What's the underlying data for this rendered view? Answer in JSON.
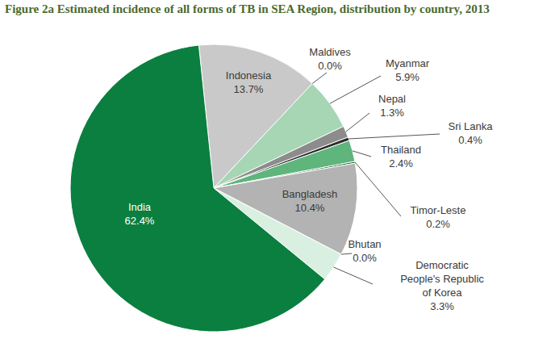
{
  "chart_data": {
    "type": "pie",
    "title": "Figure 2a  Estimated incidence of all forms of TB in SEA Region, distribution by country, 2013",
    "categories": [
      "Indonesia",
      "Maldives",
      "Myanmar",
      "Nepal",
      "Sri Lanka",
      "Thailand",
      "Timor-Leste",
      "Bangladesh",
      "Bhutan",
      "Democratic People's Republic of Korea",
      "India"
    ],
    "values": [
      13.7,
      0,
      5.9,
      1.3,
      0.4,
      2.4,
      0.2,
      10.4,
      0,
      3.3,
      62.4
    ],
    "value_labels": [
      "13.7%",
      "0.0%",
      "5.9%",
      "1.3%",
      "0.4%",
      "2.4%",
      "0.2%",
      "10.4%",
      "0.0%",
      "3.3%",
      "62.4%"
    ],
    "colors": [
      "#c9c9c9",
      "#d5ecdc",
      "#a6d6b4",
      "#8c8c8c",
      "#2e2e2e",
      "#5fb57c",
      "#1f6b3a",
      "#b3b3b3",
      "#eeeeee",
      "#d9f0e0",
      "#0a7f3f"
    ],
    "data_labels": true
  }
}
